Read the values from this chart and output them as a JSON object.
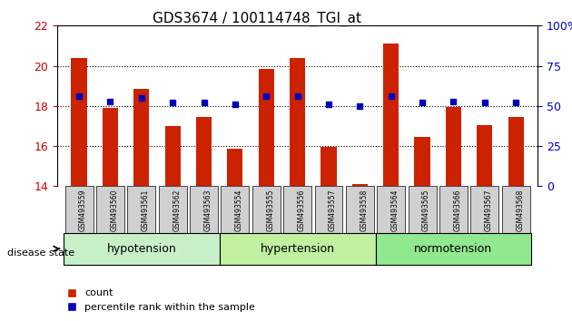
{
  "title": "GDS3674 / 100114748_TGI_at",
  "samples": [
    "GSM493559",
    "GSM493560",
    "GSM493561",
    "GSM493562",
    "GSM493563",
    "GSM493554",
    "GSM493555",
    "GSM493556",
    "GSM493557",
    "GSM493558",
    "GSM493564",
    "GSM493565",
    "GSM493566",
    "GSM493567",
    "GSM493568"
  ],
  "red_values": [
    20.4,
    17.9,
    18.85,
    17.0,
    17.45,
    15.85,
    19.85,
    20.4,
    15.95,
    14.1,
    21.1,
    16.45,
    17.95,
    17.05,
    17.45
  ],
  "blue_values": [
    56,
    53,
    55,
    52,
    52,
    51,
    56,
    56,
    51,
    50,
    56,
    52,
    53,
    52,
    52
  ],
  "groups": [
    {
      "label": "hypotension",
      "start": 0,
      "end": 5,
      "color": "#c8f0c8"
    },
    {
      "label": "hypertension",
      "start": 5,
      "end": 10,
      "color": "#c0f0a0"
    },
    {
      "label": "normotension",
      "start": 10,
      "end": 15,
      "color": "#90e890"
    }
  ],
  "ylim_left": [
    14,
    22
  ],
  "ylim_right": [
    0,
    100
  ],
  "yticks_left": [
    14,
    16,
    18,
    20,
    22
  ],
  "yticks_right": [
    0,
    25,
    50,
    75,
    100
  ],
  "ylabel_left_color": "#cc0000",
  "ylabel_right_color": "#0000cc",
  "bar_color": "#cc2200",
  "dot_color": "#0000bb",
  "grid_color": "black",
  "tick_label_bg": "#d0d0d0"
}
